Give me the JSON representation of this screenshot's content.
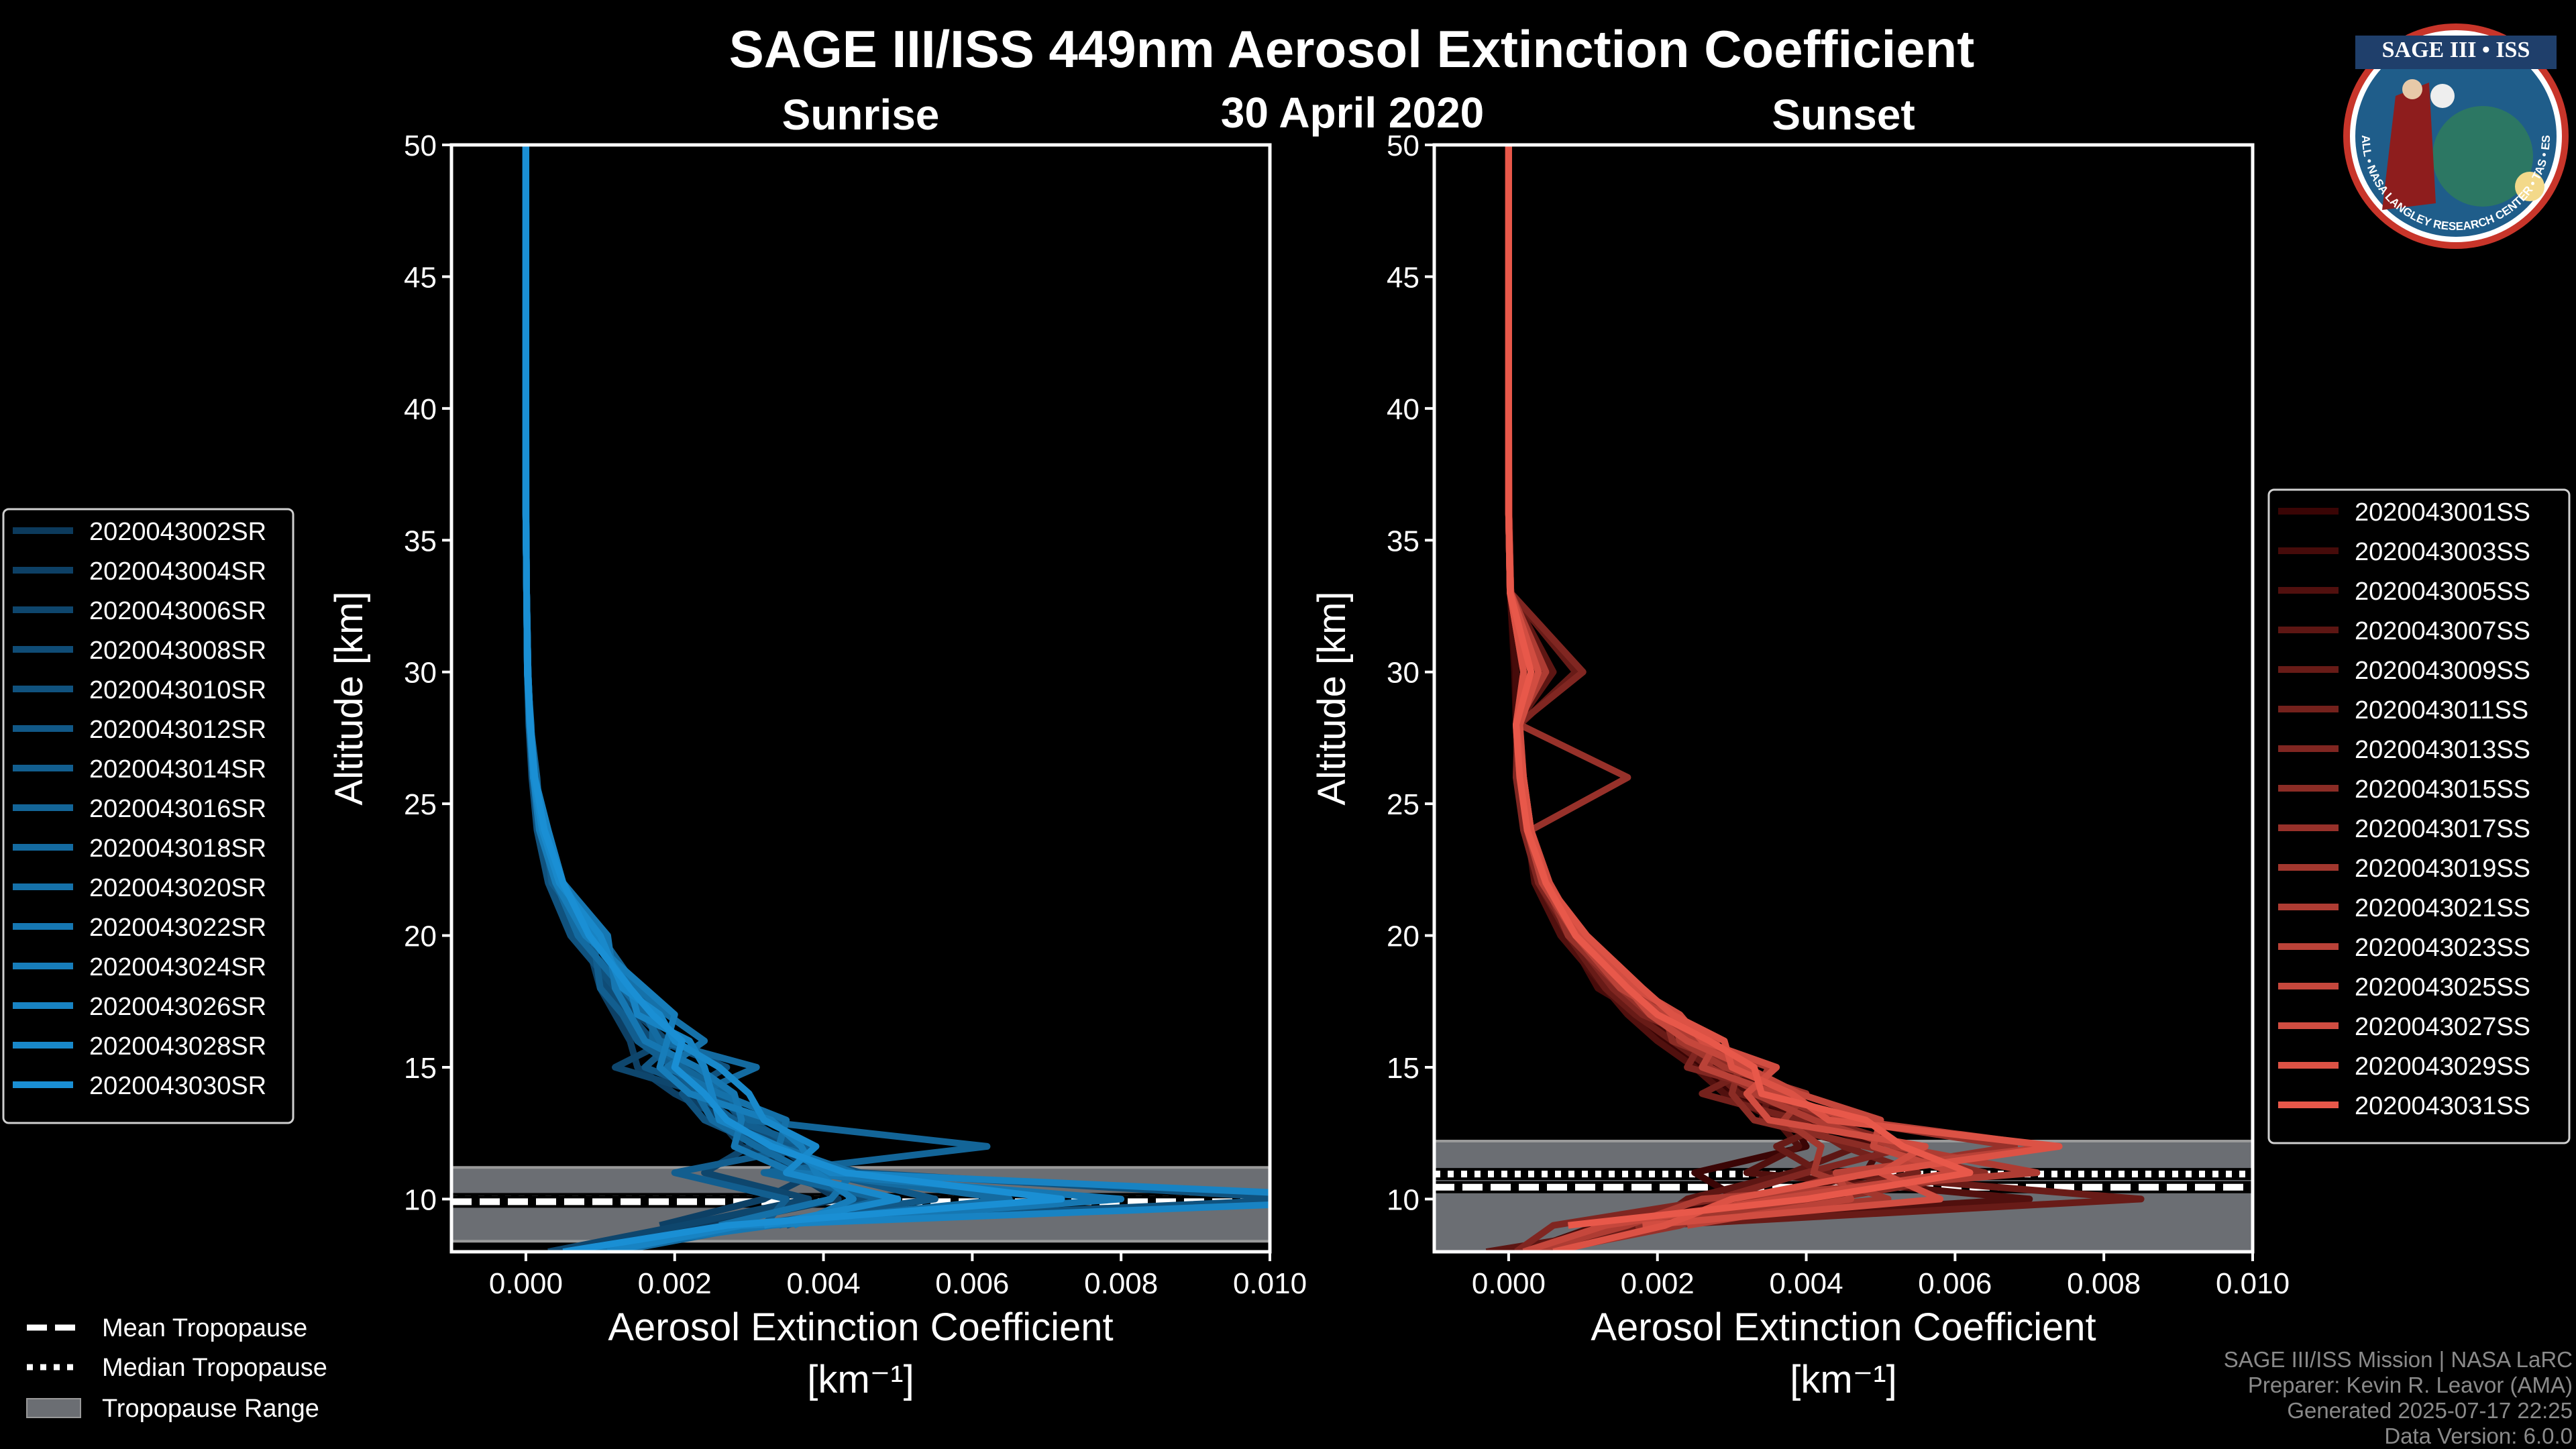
{
  "title": "SAGE III/ISS 449nm Aerosol Extinction Coefficient",
  "date": "30 April 2020",
  "footer": [
    "SAGE III/ISS Mission | NASA LaRC",
    "Preparer: Kevin R. Leavor (AMA)",
    "Generated 2025-07-17 22:25",
    "Data Version: 6.0.0"
  ],
  "logo": {
    "top_text": "SAGE III • ISS",
    "ring_text": "BALL • NASA LANGLEY RESEARCH CENTER • TAS • ESA"
  },
  "tropopause_legend": {
    "mean": "Mean Tropopause",
    "median": "Median Tropopause",
    "range": "Tropopause Range"
  },
  "colors": {
    "range_fill": "#6b6e73",
    "axes": "#ffffff"
  },
  "chart_data": [
    {
      "type": "line",
      "title": "Sunrise",
      "xlabel": "Aerosol Extinction Coefficient",
      "xunit": "[km⁻¹]",
      "ylabel": "Altitude [km]",
      "xlim": [
        -0.001,
        0.01
      ],
      "ylim": [
        8,
        50
      ],
      "xticks": [
        "0.000",
        "0.002",
        "0.004",
        "0.006",
        "0.008",
        "0.010"
      ],
      "yticks": [
        "10",
        "15",
        "20",
        "25",
        "30",
        "35",
        "40",
        "45",
        "50"
      ],
      "grid": false,
      "legend_position": "left",
      "color_start": "#0c3a5c",
      "color_end": "#1a8fd4",
      "tropopause": {
        "mean": 9.9,
        "median": 10.0,
        "range": [
          8.4,
          11.2
        ]
      },
      "value_scale": 0.001,
      "altitude": [
        8,
        9,
        10,
        11,
        12,
        13,
        14,
        15,
        16,
        17,
        18,
        20,
        22,
        24,
        26,
        28,
        30,
        33,
        36,
        40,
        45,
        50
      ],
      "series": [
        {
          "name": "2020043002SR",
          "values": [
            0.6,
            2.5,
            4.2,
            3.6,
            2.9,
            2.6,
            2.2,
            1.9,
            1.6,
            1.3,
            1.1,
            0.7,
            0.35,
            0.18,
            0.1,
            0.05,
            0.03,
            0.01,
            0.005,
            0,
            0,
            0
          ]
        },
        {
          "name": "2020043004SR",
          "values": [
            null,
            1.8,
            3.2,
            3.9,
            3.4,
            2.7,
            2.0,
            1.5,
            1.4,
            1.2,
            1.0,
            0.8,
            0.4,
            0.2,
            0.12,
            0.06,
            0.03,
            0.01,
            0.005,
            0,
            0,
            0
          ]
        },
        {
          "name": "2020043006SR",
          "values": [
            0.3,
            2.1,
            3.8,
            2.4,
            3.0,
            3.1,
            2.4,
            1.2,
            1.9,
            1.5,
            1.3,
            0.9,
            0.45,
            0.22,
            0.1,
            0.06,
            0.02,
            0.01,
            0,
            0,
            0,
            0
          ]
        },
        {
          "name": "2020043008SR",
          "values": [
            null,
            3.5,
            4.6,
            3.3,
            3.5,
            2.9,
            2.6,
            2.2,
            1.7,
            1.4,
            1.1,
            0.75,
            0.4,
            0.2,
            0.1,
            0.05,
            0.03,
            0.01,
            0,
            0,
            0,
            0
          ]
        },
        {
          "name": "2020043010SR",
          "values": [
            1.0,
            2.8,
            10.5,
            4.5,
            3.2,
            2.4,
            2.1,
            2.7,
            1.8,
            1.6,
            1.2,
            0.6,
            0.3,
            0.15,
            0.08,
            0.04,
            0.02,
            0.01,
            0,
            0,
            0,
            0
          ]
        },
        {
          "name": "2020043012SR",
          "values": [
            null,
            3.0,
            5.5,
            4.0,
            3.6,
            3.0,
            2.5,
            1.6,
            2.0,
            1.8,
            1.4,
            0.85,
            0.5,
            0.2,
            0.1,
            0.05,
            0.02,
            0.01,
            0,
            0,
            0,
            0
          ]
        },
        {
          "name": "2020043014SR",
          "values": [
            0.9,
            3.2,
            3.5,
            2.0,
            3.8,
            2.8,
            2.3,
            2.0,
            1.5,
            1.3,
            1.0,
            0.9,
            0.35,
            0.25,
            0.1,
            0.05,
            0.02,
            0.01,
            0,
            0,
            0,
            0
          ]
        },
        {
          "name": "2020043016SR",
          "values": [
            null,
            3.4,
            4.8,
            3.2,
            6.2,
            3.0,
            2.7,
            2.1,
            1.7,
            1.7,
            1.5,
            1.0,
            0.5,
            0.2,
            0.15,
            0.06,
            0.03,
            0.01,
            0,
            0,
            0,
            0
          ]
        },
        {
          "name": "2020043018SR",
          "values": [
            1.2,
            3.1,
            6.5,
            3.8,
            3.1,
            2.5,
            2.3,
            3.1,
            1.8,
            1.6,
            1.3,
            0.7,
            0.4,
            0.2,
            0.1,
            0.05,
            0.02,
            0.01,
            0,
            0,
            0,
            0
          ]
        },
        {
          "name": "2020043020SR",
          "values": [
            null,
            2.6,
            4.1,
            4.4,
            3.4,
            3.5,
            2.6,
            1.9,
            2.4,
            1.9,
            1.5,
            0.9,
            0.45,
            0.25,
            0.12,
            0.06,
            0.03,
            0.01,
            0,
            0,
            0,
            0
          ]
        },
        {
          "name": "2020043022SR",
          "values": [
            0.7,
            3.3,
            8.0,
            3.6,
            2.8,
            2.9,
            2.8,
            2.3,
            1.6,
            1.4,
            1.2,
            1.1,
            0.5,
            0.2,
            0.1,
            0.07,
            0.02,
            0.01,
            0,
            0,
            0,
            0
          ]
        },
        {
          "name": "2020043024SR",
          "values": [
            null,
            3.6,
            4.4,
            3.9,
            3.7,
            3.3,
            2.2,
            1.8,
            1.9,
            2.0,
            1.6,
            0.8,
            0.4,
            0.18,
            0.1,
            0.05,
            0.02,
            0.01,
            0,
            0,
            0,
            0
          ]
        },
        {
          "name": "2020043026SR",
          "values": [
            1.1,
            2.9,
            12.0,
            4.1,
            3.4,
            2.6,
            2.5,
            2.4,
            2.2,
            1.5,
            1.4,
            0.9,
            0.5,
            0.3,
            0.12,
            0.05,
            0.03,
            0.01,
            0,
            0,
            0,
            0
          ]
        },
        {
          "name": "2020043028SR",
          "values": [
            null,
            3.2,
            5.0,
            3.5,
            3.9,
            3.2,
            3.0,
            2.6,
            2.0,
            1.8,
            1.3,
            1.0,
            0.45,
            0.22,
            0.1,
            0.06,
            0.03,
            0.01,
            0,
            0,
            0,
            0
          ]
        },
        {
          "name": "2020043030SR",
          "values": [
            0.5,
            2.7,
            7.2,
            4.3,
            3.3,
            2.7,
            2.4,
            2.0,
            2.1,
            1.7,
            1.4,
            0.85,
            0.5,
            0.25,
            0.12,
            0.06,
            0.02,
            0.01,
            0,
            0,
            0,
            0
          ]
        }
      ]
    },
    {
      "type": "line",
      "title": "Sunset",
      "xlabel": "Aerosol Extinction Coefficient",
      "xunit": "[km⁻¹]",
      "ylabel": "Altitude [km]",
      "xlim": [
        -0.001,
        0.01
      ],
      "ylim": [
        8,
        50
      ],
      "xticks": [
        "0.000",
        "0.002",
        "0.004",
        "0.006",
        "0.008",
        "0.010"
      ],
      "yticks": [
        "10",
        "15",
        "20",
        "25",
        "30",
        "35",
        "40",
        "45",
        "50"
      ],
      "grid": false,
      "legend_position": "right",
      "color_start": "#3a0505",
      "color_end": "#e8584a",
      "tropopause": {
        "mean": 10.45,
        "median": 10.95,
        "range": [
          8.0,
          12.2
        ]
      },
      "value_scale": 0.001,
      "altitude": [
        8,
        9,
        10,
        11,
        12,
        13,
        14,
        15,
        16,
        17,
        18,
        20,
        22,
        24,
        26,
        28,
        30,
        33,
        36,
        40,
        45,
        50
      ],
      "series": [
        {
          "name": "2020043001SS",
          "values": [
            null,
            1.5,
            3.1,
            2.5,
            4.0,
            3.8,
            3.0,
            2.6,
            2.1,
            1.7,
            1.3,
            0.75,
            0.4,
            0.2,
            0.15,
            0.1,
            0.08,
            0.02,
            0.01,
            0,
            0,
            0
          ]
        },
        {
          "name": "2020043003SS",
          "values": [
            0.2,
            1.2,
            3.5,
            4.8,
            5.0,
            4.0,
            3.2,
            2.8,
            2.3,
            1.8,
            1.2,
            0.8,
            0.4,
            0.2,
            0.15,
            0.1,
            0.1,
            0.02,
            0.01,
            0,
            0,
            0
          ]
        },
        {
          "name": "2020043005SS",
          "values": [
            null,
            1.0,
            7.0,
            3.2,
            3.9,
            3.6,
            2.9,
            2.5,
            2.0,
            1.6,
            1.3,
            0.7,
            0.35,
            0.25,
            0.1,
            0.12,
            0.2,
            0.02,
            0,
            0,
            0,
            0
          ]
        },
        {
          "name": "2020043007SS",
          "values": [
            -0.3,
            1.9,
            2.4,
            3.8,
            4.7,
            3.4,
            3.5,
            2.9,
            2.4,
            1.9,
            1.4,
            0.85,
            0.45,
            0.2,
            0.12,
            0.1,
            0.6,
            0.03,
            0.01,
            0,
            0,
            0
          ]
        },
        {
          "name": "2020043009SS",
          "values": [
            0.4,
            2.0,
            8.5,
            4.2,
            3.6,
            4.4,
            3.1,
            2.7,
            2.2,
            1.7,
            1.3,
            0.8,
            0.4,
            0.25,
            0.2,
            0.15,
            0.9,
            0.03,
            0,
            0,
            0,
            0
          ]
        },
        {
          "name": "2020043011SS",
          "values": [
            null,
            1.4,
            3.8,
            5.5,
            4.5,
            3.9,
            2.6,
            3.3,
            2.5,
            2.0,
            1.5,
            0.9,
            0.5,
            0.3,
            0.15,
            0.1,
            0.3,
            0.02,
            0,
            0,
            0,
            0
          ]
        },
        {
          "name": "2020043013SS",
          "values": [
            0.1,
            0.6,
            2.8,
            4.0,
            5.4,
            4.2,
            3.7,
            2.4,
            2.6,
            1.8,
            1.4,
            0.85,
            0.4,
            0.2,
            0.1,
            0.12,
            1.0,
            0.03,
            0,
            0,
            0,
            0
          ]
        },
        {
          "name": "2020043015SS",
          "values": [
            null,
            1.7,
            4.3,
            6.4,
            4.8,
            3.3,
            3.0,
            3.1,
            2.2,
            2.1,
            1.6,
            0.9,
            0.45,
            0.25,
            0.15,
            0.1,
            0.2,
            0.02,
            0,
            0,
            0,
            0
          ]
        },
        {
          "name": "2020043017SS",
          "values": [
            0.5,
            2.3,
            3.3,
            4.6,
            6.8,
            4.5,
            3.4,
            2.7,
            2.7,
            1.9,
            1.5,
            0.8,
            0.5,
            0.3,
            1.6,
            0.15,
            0.3,
            0.03,
            0,
            0,
            0,
            0
          ]
        },
        {
          "name": "2020043019SS",
          "values": [
            null,
            1.1,
            5.1,
            4.1,
            4.2,
            3.7,
            4.0,
            2.9,
            2.3,
            2.2,
            1.6,
            0.95,
            0.5,
            0.25,
            0.2,
            0.1,
            0.4,
            0.02,
            0,
            0,
            0,
            0
          ]
        },
        {
          "name": "2020043021SS",
          "values": [
            0.3,
            1.6,
            2.6,
            7.1,
            5.2,
            4.1,
            3.3,
            3.5,
            2.5,
            2.0,
            1.7,
            1.0,
            0.5,
            0.3,
            0.15,
            0.1,
            0.5,
            0.03,
            0,
            0,
            0,
            0
          ]
        },
        {
          "name": "2020043023SS",
          "values": [
            null,
            2.4,
            4.6,
            4.4,
            7.3,
            4.6,
            3.6,
            2.6,
            2.8,
            2.1,
            1.5,
            0.9,
            0.45,
            0.25,
            0.2,
            0.12,
            0.2,
            0.02,
            0,
            0,
            0,
            0
          ]
        },
        {
          "name": "2020043025SS",
          "values": [
            0.2,
            1.3,
            3.6,
            6.0,
            4.9,
            5.0,
            3.9,
            3.2,
            2.4,
            1.9,
            1.6,
            1.0,
            0.5,
            0.3,
            0.2,
            0.1,
            0.3,
            0.02,
            0,
            0,
            0,
            0
          ]
        },
        {
          "name": "2020043027SS",
          "values": [
            null,
            1.8,
            5.8,
            5.0,
            5.6,
            3.5,
            3.2,
            3.6,
            2.6,
            2.3,
            1.7,
            0.95,
            0.55,
            0.3,
            0.2,
            0.15,
            0.4,
            0.03,
            0,
            0,
            0,
            0
          ]
        },
        {
          "name": "2020043029SS",
          "values": [
            0.6,
            2.1,
            3.0,
            4.9,
            7.4,
            4.3,
            3.8,
            3.0,
            2.9,
            2.2,
            1.8,
            1.05,
            0.5,
            0.3,
            0.2,
            0.1,
            0.2,
            0.02,
            0,
            0,
            0,
            0
          ]
        },
        {
          "name": "2020043031SS",
          "values": [
            null,
            0.8,
            4.0,
            6.2,
            5.3,
            4.8,
            3.4,
            3.3,
            2.7,
            2.0,
            1.6,
            0.9,
            0.5,
            0.25,
            0.15,
            0.1,
            0.3,
            0.02,
            0,
            0,
            0,
            0
          ]
        }
      ]
    }
  ]
}
